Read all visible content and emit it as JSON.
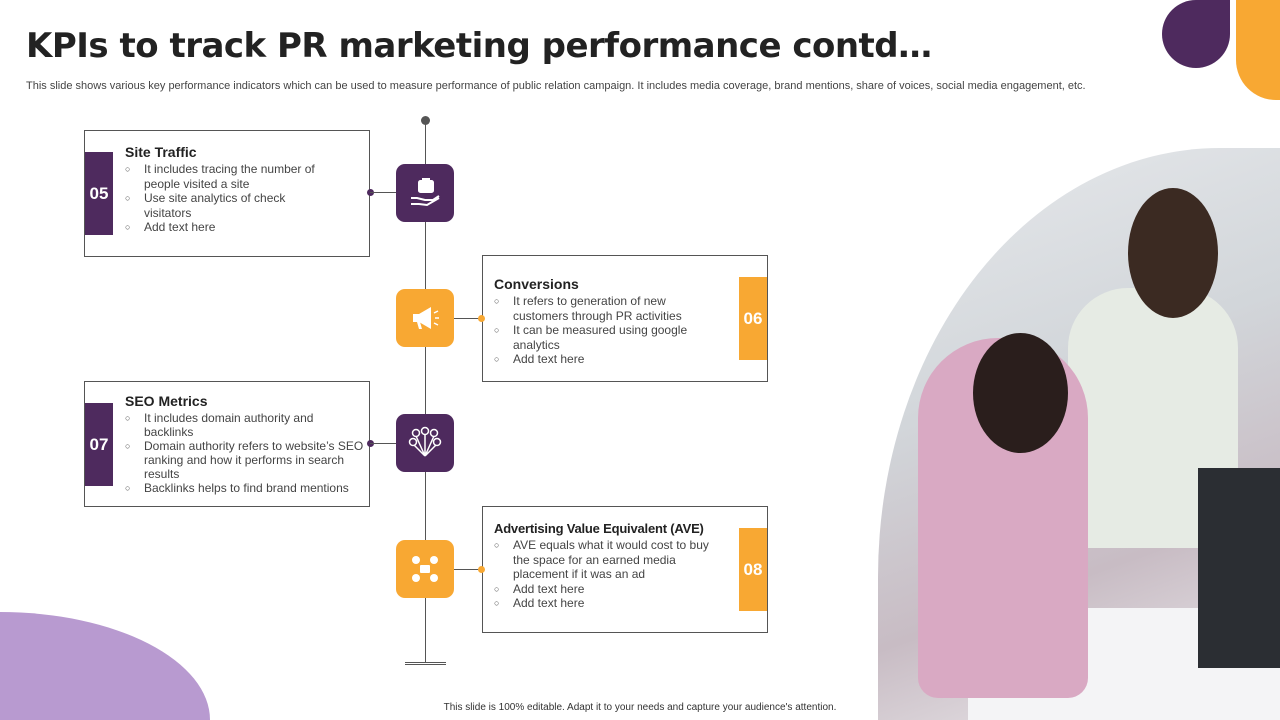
{
  "title": "KPIs to track PR marketing performance contd…",
  "subtitle": "This slide shows various key performance indicators which can be used to measure performance of public relation campaign. It includes media coverage, brand mentions, share of voices, social media engagement, etc.",
  "colors": {
    "purple": "#4E2A5E",
    "orange": "#F8A833",
    "lavender": "#B89AD0"
  },
  "kpis": [
    {
      "number": "05",
      "heading": "Site Traffic",
      "icon": "hand-briefcase-icon",
      "bullets": [
        "It includes tracing the number of people visited a site",
        "Use site analytics of check visitators",
        "Add text here"
      ]
    },
    {
      "number": "06",
      "heading": "Conversions",
      "icon": "megaphone-icon",
      "bullets": [
        "It refers to generation of new customers through PR activities",
        "It can be measured using google analytics",
        "Add text here"
      ]
    },
    {
      "number": "07",
      "heading": "SEO Metrics",
      "icon": "social-network-icon",
      "bullets": [
        "It includes domain authority and backlinks",
        "Domain authority refers to website’s SEO ranking and how it performs in search results",
        "Backlinks helps to find brand mentions"
      ]
    },
    {
      "number": "08",
      "heading": "Advertising Value Equivalent (AVE)",
      "icon": "media-channels-icon",
      "bullets": [
        "AVE equals what it would cost to buy the space for an earned media placement if it was an ad",
        "Add text here",
        "Add text here"
      ]
    }
  ],
  "footer": "This slide is 100% editable. Adapt it to your needs and capture your audience's attention."
}
